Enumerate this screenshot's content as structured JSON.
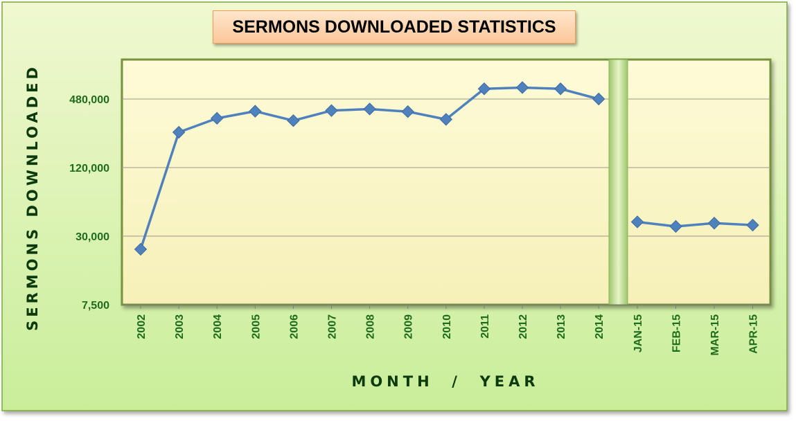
{
  "chart_data": {
    "type": "line",
    "title": "SERMONS DOWNLOADED STATISTICS",
    "xlabel": "MONTH  /  YEAR",
    "ylabel": "SERMONS  DOWNLOADED",
    "y_scale": "log",
    "ylim": [
      7500,
      1100000
    ],
    "y_ticks": [
      7500,
      30000,
      120000,
      480000
    ],
    "y_tick_labels": [
      "7,500",
      "30,000",
      "120,000",
      "480,000"
    ],
    "grid": true,
    "legend": "none",
    "series": [
      {
        "categories": [
          "2002",
          "2003",
          "2004",
          "2005",
          "2006",
          "2007",
          "2008",
          "2009",
          "2010",
          "2011",
          "2012",
          "2013",
          "2014"
        ],
        "values": [
          23000,
          245000,
          325000,
          375000,
          310000,
          380000,
          392000,
          372000,
          318000,
          590000,
          605000,
          590000,
          480000
        ],
        "color": "#4f81bd"
      },
      {
        "categories": [
          "JAN-15",
          "FEB-15",
          "MAR-15",
          "APR-15"
        ],
        "values": [
          40000,
          36500,
          39000,
          37500
        ],
        "color": "#4f81bd"
      }
    ]
  },
  "colors": {
    "outer_bg_top": "#f0f8d0",
    "outer_bg_bottom": "#c9ee9a",
    "outer_border": "#7ea63e",
    "plot_bg_top": "#fefbd8",
    "plot_bg_bottom": "#f6f0b8",
    "plot_border": "#76923c",
    "axis_text": "#1e6b1e",
    "axis_title": "#0c3a0c",
    "line": "#4f81bd",
    "title_box": "#fcd5b4"
  }
}
